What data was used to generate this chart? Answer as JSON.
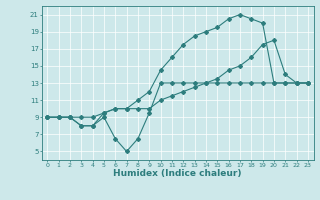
{
  "xlabel": "Humidex (Indice chaleur)",
  "bg_color": "#cde8ea",
  "grid_color": "#b0d4d8",
  "line_color": "#2d7d7d",
  "xlim": [
    -0.5,
    23.5
  ],
  "ylim": [
    4,
    22
  ],
  "yticks": [
    5,
    7,
    9,
    11,
    13,
    15,
    17,
    19,
    21
  ],
  "xticks": [
    0,
    1,
    2,
    3,
    4,
    5,
    6,
    7,
    8,
    9,
    10,
    11,
    12,
    13,
    14,
    15,
    16,
    17,
    18,
    19,
    20,
    21,
    22,
    23
  ],
  "line1_x": [
    0,
    1,
    2,
    3,
    4,
    5,
    6,
    7,
    8,
    9,
    10,
    11,
    12,
    13,
    14,
    15,
    16,
    17,
    18,
    19,
    20,
    21,
    22,
    23
  ],
  "line1_y": [
    9,
    9,
    9,
    8,
    8,
    9,
    6.5,
    5,
    6.5,
    9.5,
    13,
    13,
    13,
    13,
    13,
    13,
    13,
    13,
    13,
    13,
    13,
    13,
    13,
    13
  ],
  "line2_x": [
    0,
    1,
    2,
    3,
    4,
    5,
    6,
    7,
    8,
    9,
    10,
    11,
    12,
    13,
    14,
    15,
    16,
    17,
    18,
    19,
    20,
    21,
    22,
    23
  ],
  "line2_y": [
    9,
    9,
    9,
    9,
    9,
    9.5,
    10,
    10,
    10,
    10,
    11,
    11.5,
    12,
    12.5,
    13,
    13.5,
    14.5,
    15,
    16,
    17.5,
    18,
    14,
    13,
    13
  ],
  "line3_x": [
    0,
    1,
    2,
    3,
    4,
    5,
    6,
    7,
    8,
    9,
    10,
    11,
    12,
    13,
    14,
    15,
    16,
    17,
    18,
    19,
    20,
    21,
    22,
    23
  ],
  "line3_y": [
    9,
    9,
    9,
    8,
    8,
    9.5,
    10,
    10,
    11,
    12,
    14.5,
    16,
    17.5,
    18.5,
    19,
    19.5,
    20.5,
    21,
    20.5,
    20,
    13,
    13,
    13,
    13
  ]
}
